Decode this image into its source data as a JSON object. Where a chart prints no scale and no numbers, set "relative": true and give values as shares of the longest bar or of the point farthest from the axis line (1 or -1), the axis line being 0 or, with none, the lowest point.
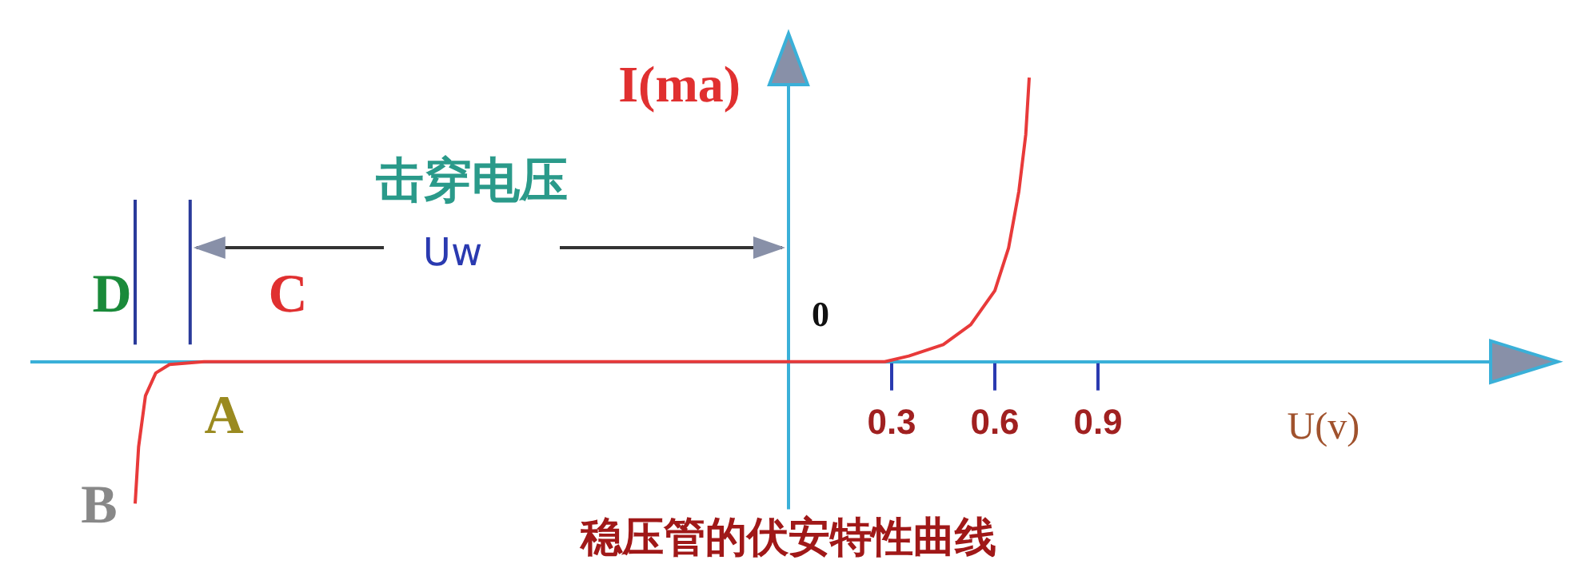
{
  "chart_data": {
    "type": "line",
    "title": "稳压管的伏安特性曲线",
    "xlabel": "U(v)",
    "ylabel": "I(ma)",
    "relative": true,
    "xlim": [
      -2.2,
      2.2
    ],
    "xticks": [
      0.3,
      0.6,
      0.9
    ],
    "marker": "none",
    "x": [
      -1.9,
      -1.89,
      -1.87,
      -1.84,
      -1.8,
      -1.7,
      0.28,
      0.35,
      0.45,
      0.53,
      0.6,
      0.64,
      0.67,
      0.69,
      0.7
    ],
    "series": [
      {
        "color": "#e83a3a",
        "values": [
          -0.5,
          -0.3,
          -0.12,
          -0.04,
          -0.01,
          0,
          0,
          0.02,
          0.06,
          0.13,
          0.25,
          0.4,
          0.6,
          0.8,
          1
        ]
      }
    ],
    "ref_lines": [
      {
        "axis": "x",
        "value": 0,
        "color": "#3ab0d8"
      },
      {
        "axis": "x",
        "value": -1.9,
        "color": "#2a3a9a"
      },
      {
        "axis": "x",
        "value": -1.74,
        "color": "#2a3a9a"
      }
    ],
    "annotations": [
      "击穿电压",
      "Uw",
      {
        "text": "0",
        "x": 0,
        "y": 0
      },
      "D",
      "C",
      "A",
      "B"
    ]
  }
}
